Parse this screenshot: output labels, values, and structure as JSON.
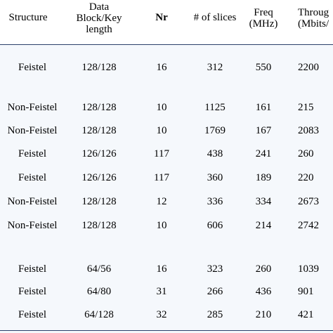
{
  "headers": [
    [
      "Structure"
    ],
    [
      "Data",
      "Block/Key",
      "length"
    ],
    [
      "Nr"
    ],
    [
      "# of slices"
    ],
    [
      "Freq",
      "(MHz)"
    ],
    [
      "Throug",
      "(Mbits/"
    ]
  ],
  "rows": [
    [
      "Feistel",
      "128/128",
      "16",
      "312",
      "550",
      "2200"
    ],
    [
      "Non-Feistel",
      "128/128",
      "10",
      "1125",
      "161",
      "215"
    ],
    [
      "Non-Feistel",
      "128/128",
      "10",
      "1769",
      "167",
      "2083"
    ],
    [
      "Feistel",
      "126/126",
      "117",
      "438",
      "241",
      "260"
    ],
    [
      "Feistel",
      "126/126",
      "117",
      "360",
      "189",
      "220"
    ],
    [
      "Non-Feistel",
      "128/128",
      "12",
      "336",
      "334",
      "2673"
    ],
    [
      "Non-Feistel",
      "128/128",
      "10",
      "606",
      "214",
      "2742"
    ],
    [
      "Feistel",
      "64/56",
      "16",
      "323",
      "260",
      "1039"
    ],
    [
      "Feistel",
      "64/80",
      "31",
      "266",
      "436",
      "901"
    ],
    [
      "Feistel",
      "64/128",
      "32",
      "285",
      "210",
      "421"
    ]
  ]
}
